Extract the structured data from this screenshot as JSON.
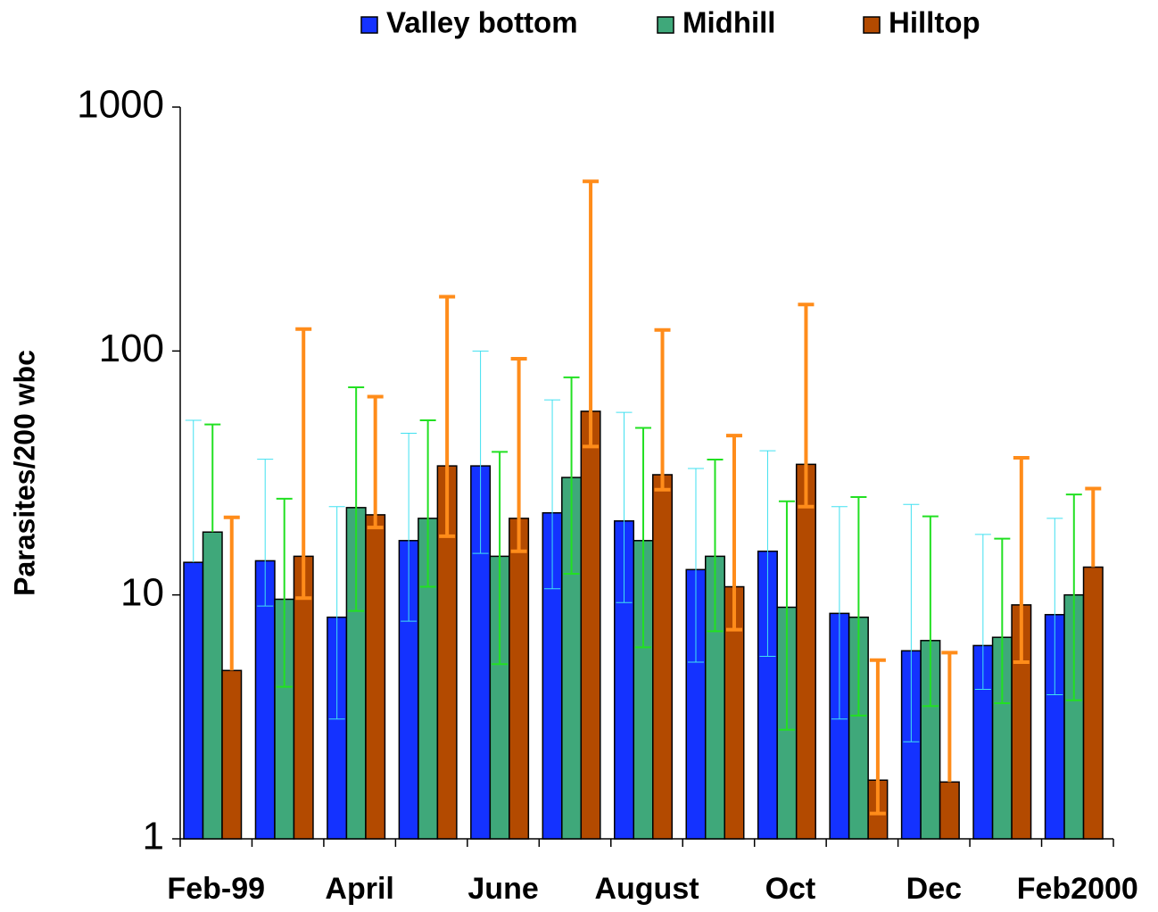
{
  "chart_data": {
    "type": "bar",
    "log_scale": true,
    "grid": false,
    "legend_position": "top",
    "y_label": "Parasites/200 wbc",
    "categories": [
      "Feb-99",
      null,
      "April",
      null,
      "June",
      null,
      "August",
      null,
      "Oct",
      null,
      "Dec",
      null,
      "Feb2000"
    ],
    "ylim": [
      1,
      1000
    ],
    "yticks": [
      1,
      10,
      100,
      1000
    ],
    "series": [
      {
        "name": "Valley bottom",
        "color": "#1432ff",
        "error_color": "#40e0f0",
        "values": [
          13.6,
          13.8,
          8.1,
          16.7,
          33.8,
          21.7,
          20.1,
          12.7,
          15.1,
          8.4,
          5.9,
          6.2,
          8.3
        ],
        "lower": [
          null,
          9.0,
          3.1,
          7.8,
          14.8,
          10.6,
          9.3,
          5.3,
          5.6,
          3.1,
          2.5,
          4.1,
          3.9
        ],
        "upper": [
          52,
          36,
          23,
          46,
          100,
          63,
          56,
          33,
          39,
          23,
          23.5,
          17.7,
          20.6
        ]
      },
      {
        "name": "Midhill",
        "color": "#3fa87a",
        "error_color": "#22e022",
        "values": [
          18.1,
          9.6,
          22.8,
          20.6,
          14.4,
          30.3,
          16.7,
          14.4,
          8.9,
          8.1,
          6.5,
          6.7,
          10.0
        ],
        "lower": [
          null,
          4.2,
          8.6,
          10.8,
          5.2,
          12.2,
          6.1,
          7.1,
          2.8,
          3.2,
          3.5,
          3.6,
          3.7
        ],
        "upper": [
          50,
          24.8,
          71,
          52,
          38.6,
          78,
          48.4,
          35.9,
          24.2,
          25.2,
          21,
          17,
          25.8
        ]
      },
      {
        "name": "Hilltop",
        "color": "#b34a00",
        "error_color": "#ff8c1a",
        "values": [
          4.9,
          14.4,
          21.3,
          33.8,
          20.6,
          56.6,
          31.1,
          10.8,
          34.3,
          1.74,
          1.71,
          9.1,
          13.0
        ],
        "lower": [
          null,
          9.7,
          18.9,
          17.4,
          15.1,
          40.6,
          27,
          7.2,
          23,
          1.27,
          null,
          5.3,
          null
        ],
        "upper": [
          20.8,
          123,
          65,
          167,
          93,
          496,
          122,
          45,
          155,
          5.4,
          5.8,
          36.5,
          27.3
        ]
      }
    ]
  }
}
